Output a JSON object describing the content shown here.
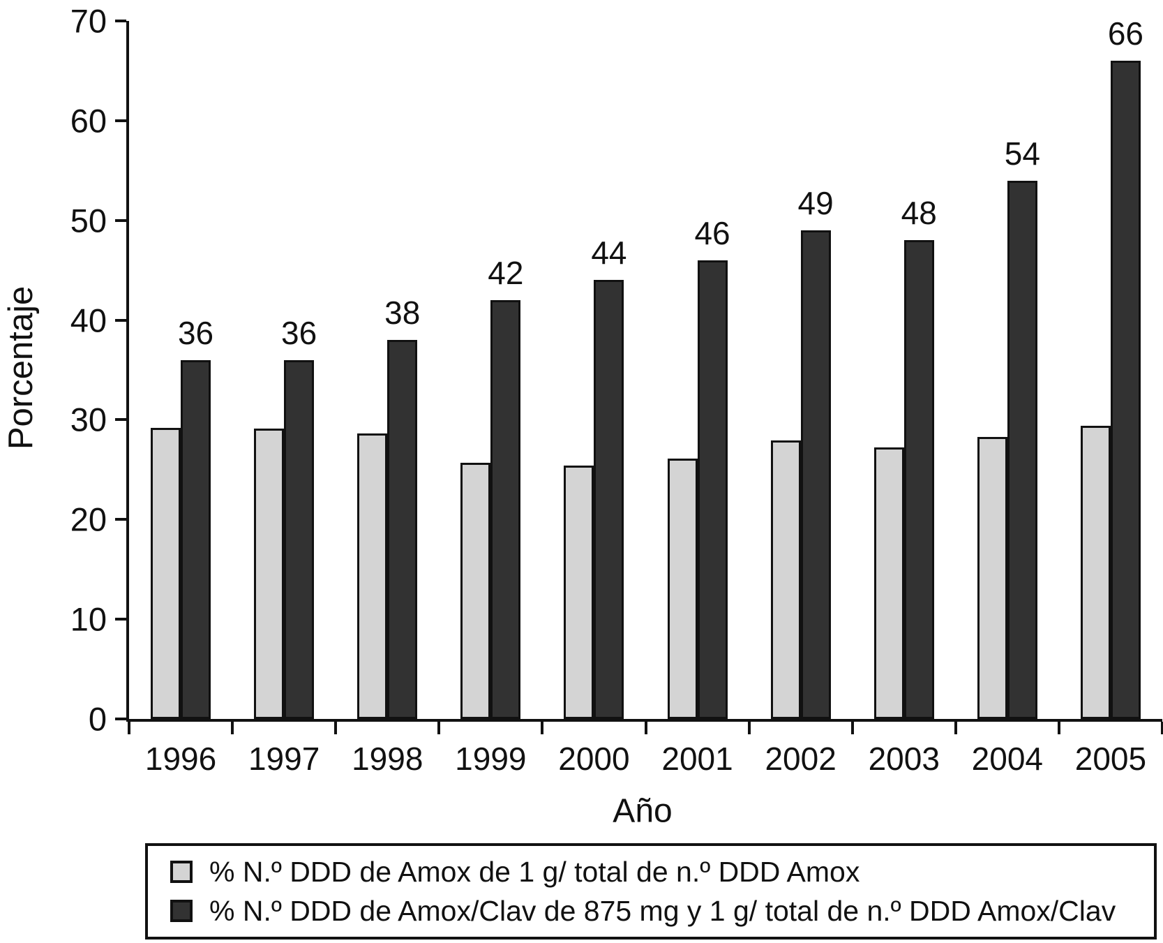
{
  "chart_data": {
    "type": "bar",
    "title": "",
    "xlabel": "Año",
    "ylabel": "Porcentaje",
    "ylim": [
      0,
      70
    ],
    "yticks": [
      0,
      10,
      20,
      30,
      40,
      50,
      60,
      70
    ],
    "grid": false,
    "legend_position": "bottom",
    "background_color": "#ffffff",
    "axis_color": "#111111",
    "categories": [
      "1996",
      "1997",
      "1998",
      "1999",
      "2000",
      "2001",
      "2002",
      "2003",
      "2004",
      "2005"
    ],
    "series": [
      {
        "name": "% N.º DDD de Amox de 1 g/ total de n.º DDD Amox",
        "color": "#d4d4d4",
        "outline_color": "#111111",
        "values": [
          29.2,
          29.1,
          28.6,
          25.7,
          25.4,
          26.1,
          27.9,
          27.2,
          28.3,
          29.4
        ],
        "show_data_labels": false
      },
      {
        "name": "% N.º DDD de Amox/Clav de 875 mg y 1 g/ total de n.º DDD Amox/Clav",
        "color": "#323232",
        "outline_color": "#111111",
        "values": [
          36,
          36,
          38,
          42,
          44,
          46,
          49,
          48,
          54,
          66
        ],
        "data_labels": [
          "36",
          "36",
          "38",
          "42",
          "44",
          "46",
          "49",
          "48",
          "54",
          "66"
        ],
        "show_data_labels": true
      }
    ]
  }
}
